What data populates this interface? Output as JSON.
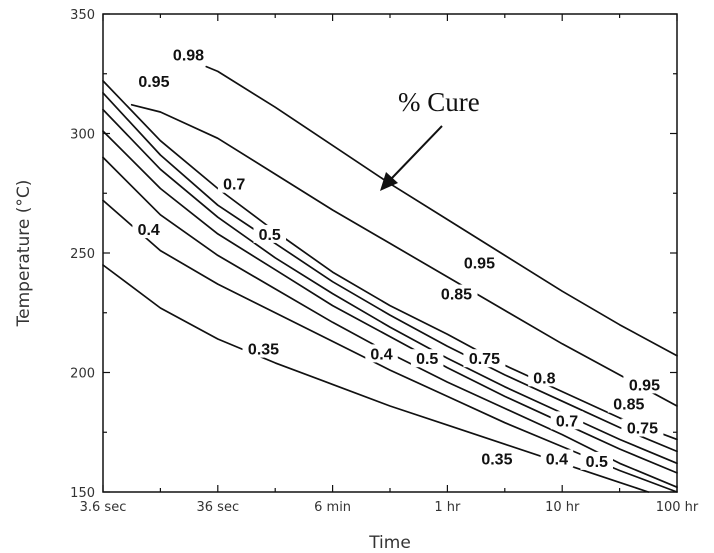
{
  "chart_data": {
    "type": "contour",
    "xlabel": "Time",
    "ylabel": "Temperature (°C)",
    "x_scale": "log",
    "x_ticks": [
      "3.6 sec",
      "36 sec",
      "6 min",
      "1 hr",
      "10 hr",
      "100 hr"
    ],
    "y_ticks": [
      "150",
      "200",
      "250",
      "300",
      "350"
    ],
    "ylim": [
      150,
      350
    ],
    "grid": false,
    "annotation": "% Cure",
    "labels": [
      {
        "text": "0.98",
        "x": "20 sec",
        "y": 333
      },
      {
        "text": "0.95",
        "x": "10 sec",
        "y": 322
      },
      {
        "text": "0.7",
        "x": "50 sec",
        "y": 279
      },
      {
        "text": "0.4",
        "x": "9 sec",
        "y": 260
      },
      {
        "text": "0.5",
        "x": "1.7 min",
        "y": 258
      },
      {
        "text": "0.95",
        "x": "1.9 hr",
        "y": 246
      },
      {
        "text": "0.85",
        "x": "1.2 hr",
        "y": 233
      },
      {
        "text": "0.35",
        "x": "1.5 min",
        "y": 210
      },
      {
        "text": "0.4",
        "x": "16 min",
        "y": 208
      },
      {
        "text": "0.5",
        "x": "40 min",
        "y": 206
      },
      {
        "text": "0.75",
        "x": "2.1 hr",
        "y": 206
      },
      {
        "text": "0.8",
        "x": "7 hr",
        "y": 198
      },
      {
        "text": "0.95",
        "x": "52 hr",
        "y": 195
      },
      {
        "text": "0.85",
        "x": "38 hr",
        "y": 187
      },
      {
        "text": "0.7",
        "x": "11 hr",
        "y": 180
      },
      {
        "text": "0.75",
        "x": "50 hr",
        "y": 177
      },
      {
        "text": "0.35",
        "x": "2.7 hr",
        "y": 164
      },
      {
        "text": "0.4",
        "x": "9 hr",
        "y": 164
      },
      {
        "text": "0.5",
        "x": "20 hr",
        "y": 163
      }
    ],
    "contours": [
      {
        "level": "0.35",
        "points": [
          [
            -0.006,
            245
          ],
          [
            0.5,
            227
          ],
          [
            1,
            214
          ],
          [
            1.5,
            204
          ],
          [
            2,
            195
          ],
          [
            2.5,
            186
          ],
          [
            3,
            178
          ],
          [
            3.5,
            170
          ],
          [
            4,
            162
          ],
          [
            4.5,
            154
          ],
          [
            4.75,
            150
          ]
        ]
      },
      {
        "level": "0.4",
        "points": [
          [
            -0.006,
            272
          ],
          [
            0.5,
            251
          ],
          [
            1,
            237
          ],
          [
            1.5,
            225
          ],
          [
            2,
            213
          ],
          [
            2.5,
            201
          ],
          [
            3,
            190
          ],
          [
            3.5,
            179
          ],
          [
            4,
            169
          ],
          [
            4.5,
            159
          ],
          [
            5,
            150
          ]
        ]
      },
      {
        "level": "0.5",
        "points": [
          [
            -0.006,
            290
          ],
          [
            0.5,
            266
          ],
          [
            1,
            249
          ],
          [
            1.5,
            235
          ],
          [
            2,
            221
          ],
          [
            2.5,
            208
          ],
          [
            3,
            196
          ],
          [
            3.5,
            185
          ],
          [
            4,
            174
          ],
          [
            4.5,
            162
          ],
          [
            5,
            152
          ]
        ]
      },
      {
        "level": "0.7",
        "points": [
          [
            -0.006,
            301
          ],
          [
            0.5,
            277
          ],
          [
            1,
            258
          ],
          [
            1.5,
            243
          ],
          [
            2,
            228
          ],
          [
            2.5,
            215
          ],
          [
            3,
            202
          ],
          [
            3.5,
            190
          ],
          [
            4,
            179
          ],
          [
            4.5,
            168
          ],
          [
            5,
            158
          ]
        ]
      },
      {
        "level": "0.75",
        "points": [
          [
            -0.006,
            310
          ],
          [
            0.5,
            285
          ],
          [
            1,
            265
          ],
          [
            1.5,
            248
          ],
          [
            2,
            233
          ],
          [
            2.5,
            219
          ],
          [
            3,
            206
          ],
          [
            3.5,
            194
          ],
          [
            4,
            183
          ],
          [
            4.5,
            172
          ],
          [
            5,
            162
          ]
        ]
      },
      {
        "level": "0.8",
        "points": [
          [
            -0.006,
            317
          ],
          [
            0.5,
            291
          ],
          [
            1,
            270
          ],
          [
            1.5,
            254
          ],
          [
            2,
            238
          ],
          [
            2.5,
            224
          ],
          [
            3,
            211
          ],
          [
            3.5,
            199
          ],
          [
            4,
            188
          ],
          [
            4.5,
            177
          ],
          [
            5,
            167
          ]
        ]
      },
      {
        "level": "0.85",
        "points": [
          [
            -0.006,
            322
          ],
          [
            0.5,
            297
          ],
          [
            1,
            277
          ],
          [
            1.5,
            259
          ],
          [
            2,
            242
          ],
          [
            2.5,
            228
          ],
          [
            3,
            216
          ],
          [
            3.5,
            203
          ],
          [
            4,
            192
          ],
          [
            4.5,
            181
          ],
          [
            5,
            172
          ]
        ]
      },
      {
        "level": "0.95",
        "points": [
          [
            0.25,
            312
          ],
          [
            0.5,
            309
          ],
          [
            1,
            298
          ],
          [
            1.5,
            283
          ],
          [
            2,
            268
          ],
          [
            2.5,
            254
          ],
          [
            3,
            240
          ],
          [
            3.5,
            226
          ],
          [
            4,
            212
          ],
          [
            4.5,
            199
          ],
          [
            5,
            186
          ]
        ]
      },
      {
        "level": "0.98",
        "points": [
          [
            0.9,
            328
          ],
          [
            1,
            326
          ],
          [
            1.5,
            311
          ],
          [
            2,
            295
          ],
          [
            2.5,
            279
          ],
          [
            3,
            264
          ],
          [
            3.5,
            249
          ],
          [
            4,
            234
          ],
          [
            4.5,
            220
          ],
          [
            5,
            207
          ]
        ]
      }
    ]
  }
}
